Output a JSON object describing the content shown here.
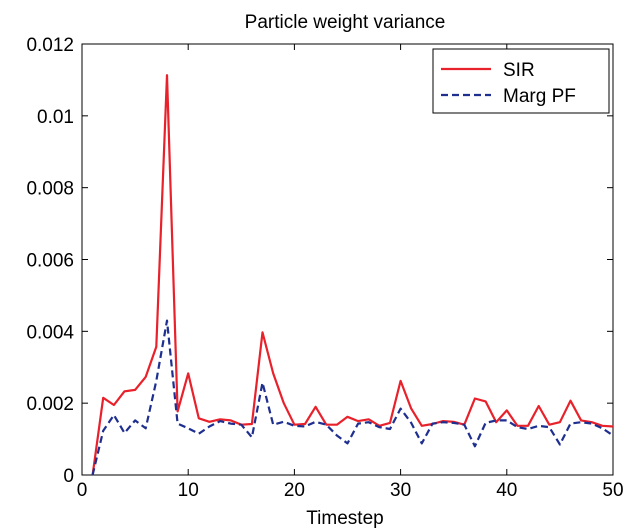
{
  "chart_data": {
    "type": "line",
    "title": "Particle weight variance",
    "xlabel": "Timestep",
    "ylabel": "",
    "xlim": [
      0,
      50
    ],
    "ylim": [
      0,
      0.012
    ],
    "xticks": [
      0,
      10,
      20,
      30,
      40,
      50
    ],
    "xtick_labels": [
      "0",
      "10",
      "20",
      "30",
      "40",
      "50"
    ],
    "yticks": [
      0,
      0.002,
      0.004,
      0.006,
      0.008,
      0.01,
      0.012
    ],
    "ytick_labels": [
      "0",
      "0.002",
      "0.004",
      "0.006",
      "0.008",
      "0.01",
      "0.012"
    ],
    "grid": false,
    "legend_position": "top-right",
    "series": [
      {
        "name": "SIR",
        "color": "#e8212b",
        "style": "solid",
        "x": [
          1,
          2,
          3,
          4,
          5,
          6,
          7,
          8,
          9,
          10,
          11,
          12,
          13,
          14,
          15,
          16,
          17,
          18,
          19,
          20,
          21,
          22,
          23,
          24,
          25,
          26,
          27,
          28,
          29,
          30,
          31,
          32,
          33,
          34,
          35,
          36,
          37,
          38,
          39,
          40,
          41,
          42,
          43,
          44,
          45,
          46,
          47,
          48,
          49,
          50
        ],
        "y": [
          0.0,
          0.00215,
          0.00195,
          0.00233,
          0.00237,
          0.00273,
          0.00357,
          0.01113,
          0.00177,
          0.00283,
          0.00158,
          0.00148,
          0.00155,
          0.00152,
          0.0014,
          0.00142,
          0.00397,
          0.00283,
          0.002,
          0.0014,
          0.00142,
          0.0019,
          0.0014,
          0.0014,
          0.00162,
          0.0015,
          0.00155,
          0.00137,
          0.00145,
          0.00262,
          0.00185,
          0.00137,
          0.00142,
          0.0015,
          0.00148,
          0.0014,
          0.00213,
          0.00205,
          0.00147,
          0.0018,
          0.00137,
          0.00137,
          0.00192,
          0.0014,
          0.00147,
          0.00207,
          0.00152,
          0.00147,
          0.00137,
          0.00135
        ]
      },
      {
        "name": "Marg PF",
        "color": "#1f2f8f",
        "style": "dashed",
        "x": [
          1,
          2,
          3,
          4,
          5,
          6,
          7,
          8,
          9,
          10,
          11,
          12,
          13,
          14,
          15,
          16,
          17,
          18,
          19,
          20,
          21,
          22,
          23,
          24,
          25,
          26,
          27,
          28,
          29,
          30,
          31,
          32,
          33,
          34,
          35,
          36,
          37,
          38,
          39,
          40,
          41,
          42,
          43,
          44,
          45,
          46,
          47,
          48,
          49,
          50
        ],
        "y": [
          0.0,
          0.00123,
          0.00167,
          0.00117,
          0.00152,
          0.0013,
          0.00262,
          0.0043,
          0.00143,
          0.0013,
          0.00115,
          0.00135,
          0.0015,
          0.00143,
          0.0014,
          0.00105,
          0.00257,
          0.0014,
          0.00148,
          0.00137,
          0.00135,
          0.00148,
          0.0014,
          0.0011,
          0.00088,
          0.00143,
          0.00147,
          0.00133,
          0.00128,
          0.00185,
          0.00145,
          0.00088,
          0.00143,
          0.00147,
          0.00145,
          0.0014,
          0.0008,
          0.00145,
          0.00152,
          0.00152,
          0.00133,
          0.00128,
          0.00137,
          0.00133,
          0.00085,
          0.00143,
          0.00147,
          0.00143,
          0.0013,
          0.0011
        ]
      }
    ]
  }
}
